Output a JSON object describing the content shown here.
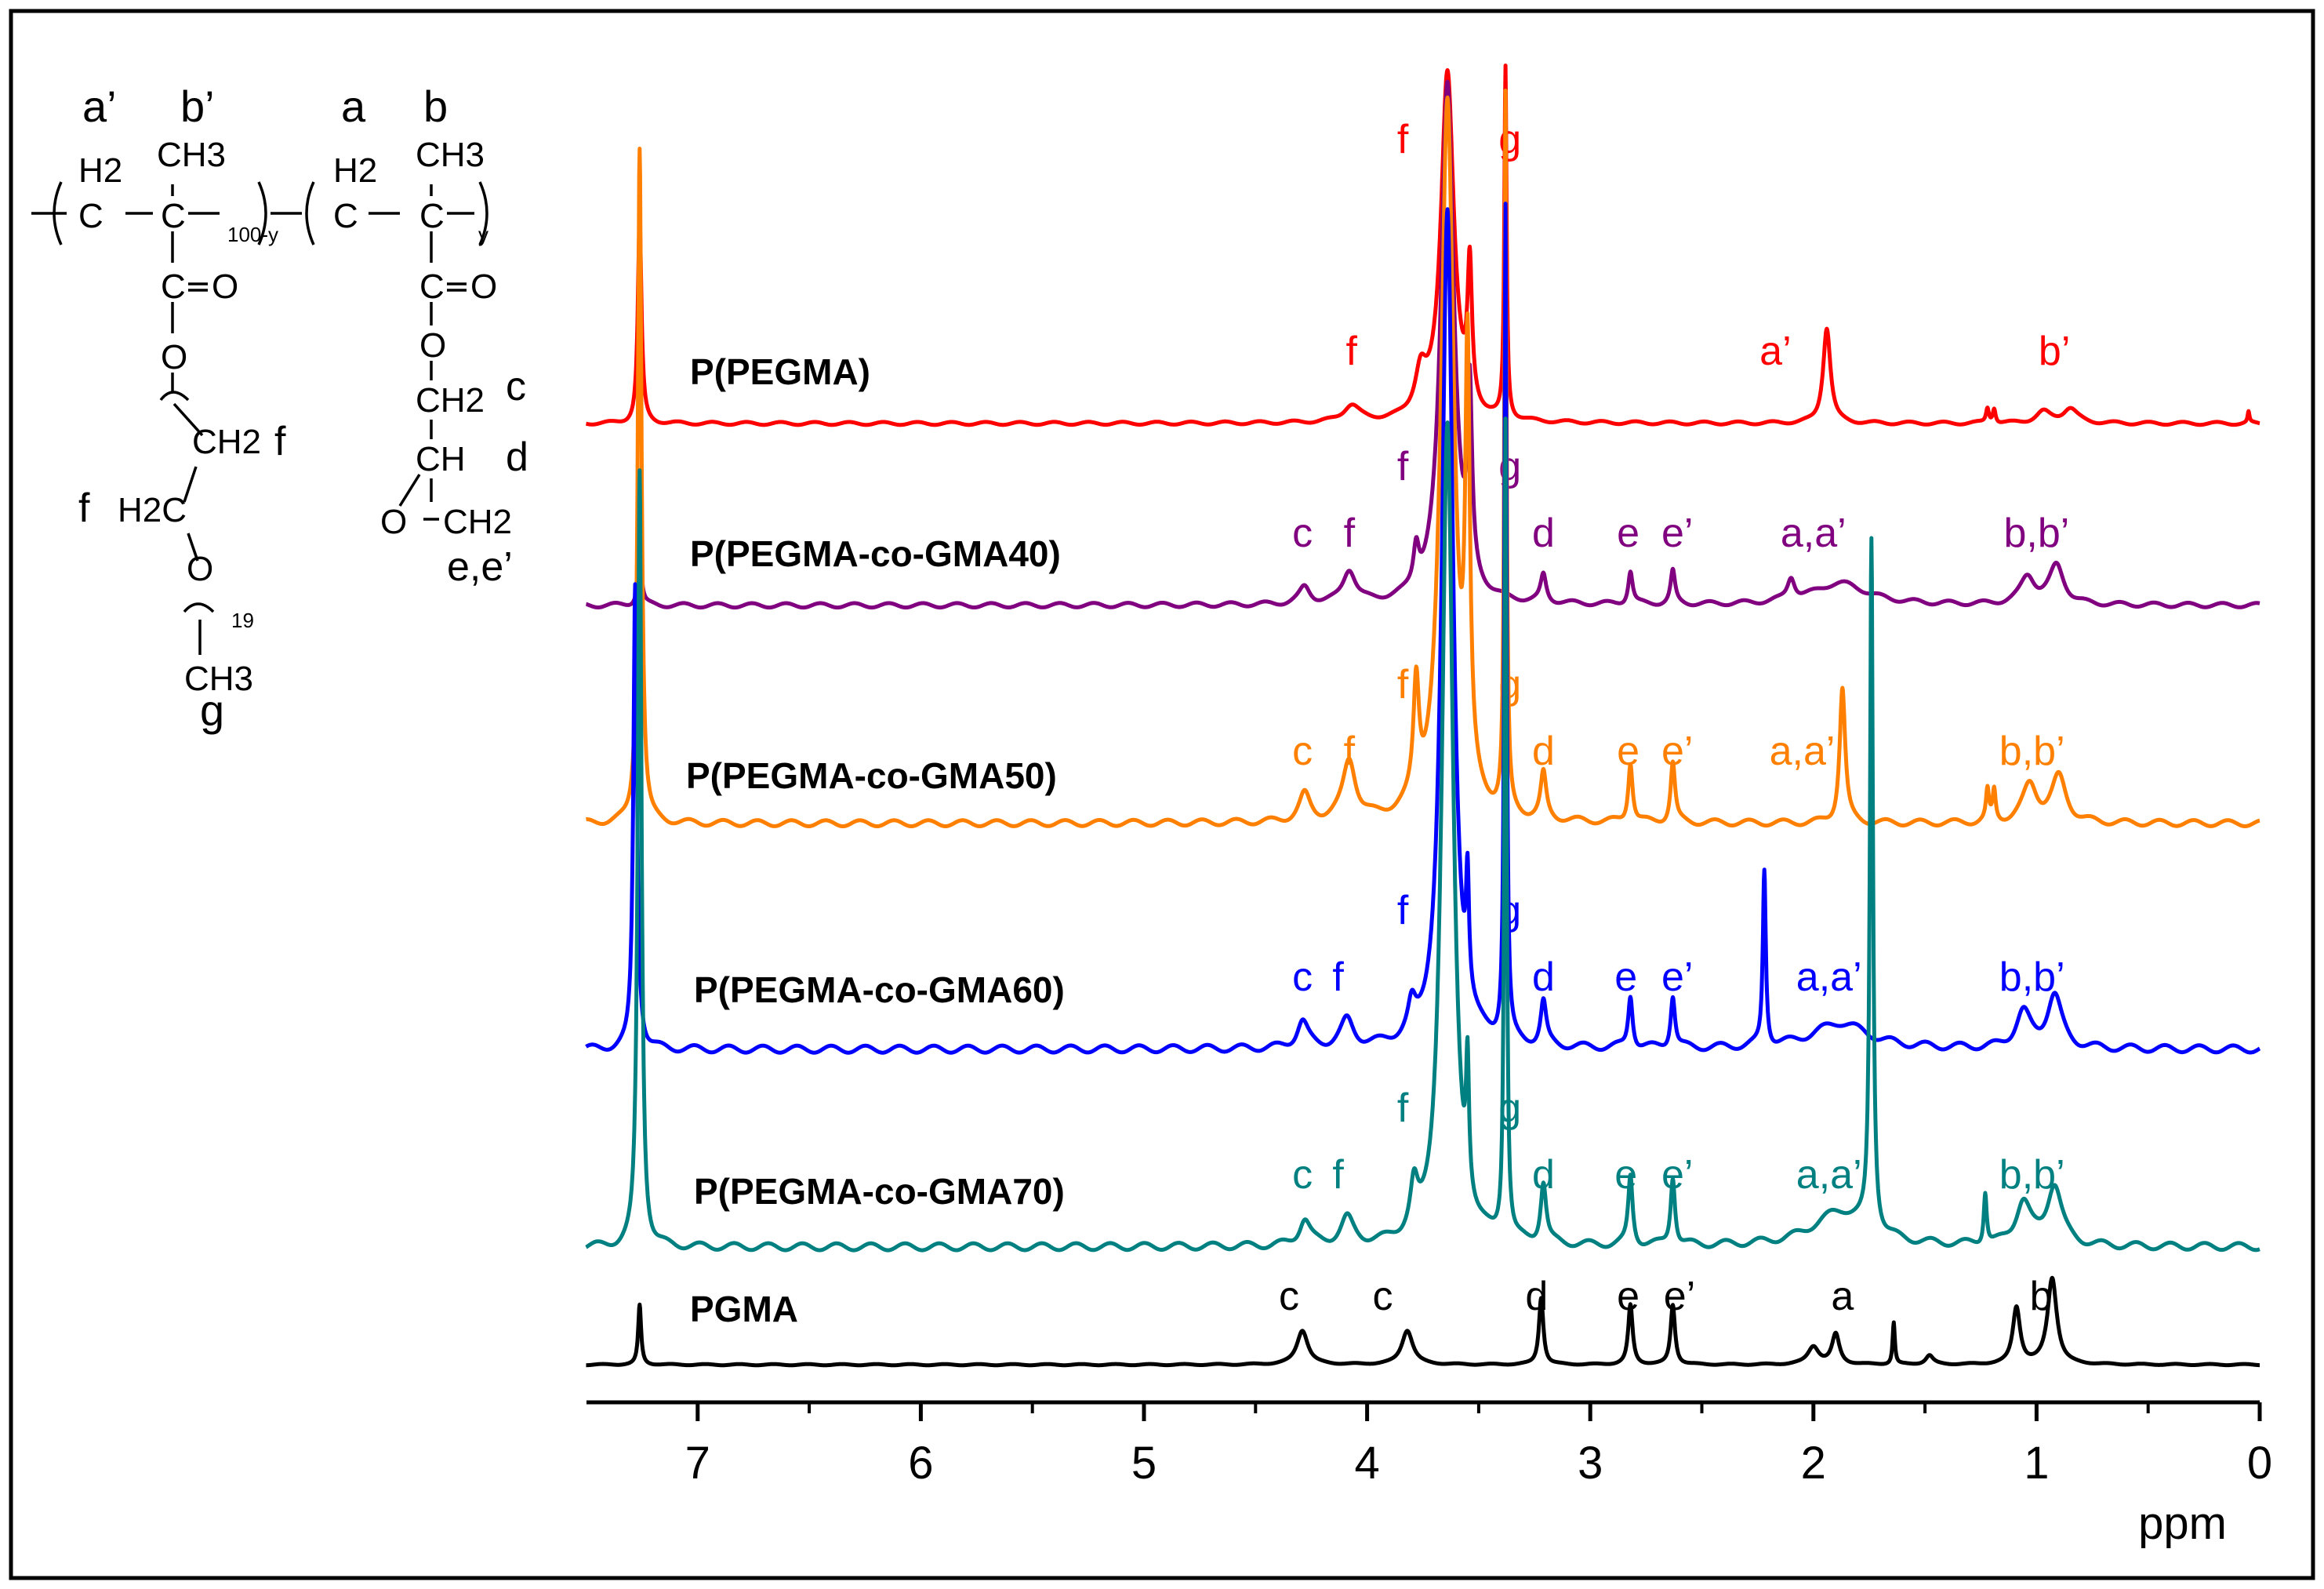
{
  "structure": {
    "top_labels": [
      "a’",
      "b’",
      "a",
      "b"
    ],
    "atoms": {
      "h2_left": "H2",
      "c_left": "C",
      "ch3_left": "CH3",
      "c_left2": "C",
      "sub_100y": "100-y",
      "h2_right": "H2",
      "c_right": "C",
      "ch3_right": "CH3",
      "c_right2": "C",
      "sub_y": "y",
      "co_left": "C",
      "o_left": "O",
      "ester_o_left": "O",
      "ch2_f": "CH2",
      "f_right": "f",
      "f_left": "f",
      "h2c": "H2C",
      "o_ether": "O",
      "sub_19": "19",
      "ch3_bottom": "CH3",
      "g_bottom": "g",
      "co_right": "C",
      "o_right": "O",
      "ester_o_right": "O",
      "ch2_c": "CH2",
      "c_label": "c",
      "ch": "CH",
      "d_label": "d",
      "o_epox": "O",
      "ch2_e": "CH2",
      "e_label": "e,e’"
    }
  },
  "chart_data": {
    "type": "line",
    "title": "",
    "xlabel": "ppm",
    "ylabel": "",
    "xlim": [
      7.5,
      0
    ],
    "x_reversed": true,
    "xticks": [
      7,
      6,
      5,
      4,
      3,
      2,
      1,
      0
    ],
    "grid": false,
    "series": [
      {
        "name": "P(PEGMA)",
        "color": "#ff0000",
        "peaks": [
          [
            7.26,
            0.55,
            0.01
          ],
          [
            4.07,
            0.045,
            0.045
          ],
          [
            3.76,
            0.11,
            0.03
          ],
          [
            3.64,
            0.95,
            0.035
          ],
          [
            3.54,
            0.37,
            0.012
          ],
          [
            3.38,
            0.95,
            0.006
          ],
          [
            1.94,
            0.26,
            0.02
          ],
          [
            1.22,
            0.04,
            0.008
          ],
          [
            1.19,
            0.04,
            0.008
          ],
          [
            0.97,
            0.03,
            0.04
          ],
          [
            0.85,
            0.04,
            0.04
          ],
          [
            0.05,
            0.03,
            0.005
          ]
        ],
        "peak_labels": [
          {
            "ppm": 3.84,
            "text": "f",
            "pos": "high"
          },
          {
            "ppm": 3.36,
            "text": "g",
            "pos": "high"
          },
          {
            "ppm": 4.07,
            "text": "f"
          },
          {
            "ppm": 2.17,
            "text": "a’"
          },
          {
            "ppm": 0.92,
            "text": "b’"
          }
        ]
      },
      {
        "name": "P(PEGMA-co-GMA40)",
        "color": "#800080",
        "peaks": [
          [
            7.26,
            0.1,
            0.01
          ],
          [
            4.28,
            0.03,
            0.03
          ],
          [
            4.08,
            0.06,
            0.035
          ],
          [
            3.78,
            0.07,
            0.015
          ],
          [
            3.64,
            0.95,
            0.035
          ],
          [
            3.54,
            0.33,
            0.012
          ],
          [
            3.21,
            0.05,
            0.015
          ],
          [
            2.82,
            0.06,
            0.012
          ],
          [
            2.63,
            0.06,
            0.012
          ],
          [
            2.1,
            0.04,
            0.02
          ],
          [
            1.88,
            0.04,
            0.15
          ],
          [
            1.04,
            0.05,
            0.04
          ],
          [
            0.91,
            0.07,
            0.04
          ]
        ],
        "peak_labels": [
          {
            "ppm": 3.84,
            "text": "f",
            "pos": "high"
          },
          {
            "ppm": 3.36,
            "text": "g",
            "pos": "high"
          },
          {
            "ppm": 4.29,
            "text": "c"
          },
          {
            "ppm": 4.08,
            "text": "f"
          },
          {
            "ppm": 3.21,
            "text": "d"
          },
          {
            "ppm": 2.83,
            "text": "e"
          },
          {
            "ppm": 2.61,
            "text": "e’"
          },
          {
            "ppm": 2.0,
            "text": "a,a’"
          },
          {
            "ppm": 1.0,
            "text": "b,b’"
          }
        ]
      },
      {
        "name": "P(PEGMA-co-GMA50)",
        "color": "#ff8000",
        "peaks": [
          [
            7.26,
            0.9,
            0.01
          ],
          [
            4.28,
            0.035,
            0.03
          ],
          [
            4.08,
            0.08,
            0.035
          ],
          [
            3.78,
            0.15,
            0.015
          ],
          [
            3.64,
            0.95,
            0.035
          ],
          [
            3.55,
            0.55,
            0.012
          ],
          [
            3.38,
            0.95,
            0.006
          ],
          [
            3.21,
            0.06,
            0.015
          ],
          [
            2.82,
            0.08,
            0.012
          ],
          [
            2.63,
            0.08,
            0.012
          ],
          [
            1.87,
            0.18,
            0.015
          ],
          [
            1.22,
            0.04,
            0.008
          ],
          [
            1.19,
            0.04,
            0.008
          ],
          [
            1.03,
            0.05,
            0.04
          ],
          [
            0.9,
            0.06,
            0.04
          ]
        ],
        "peak_labels": [
          {
            "ppm": 3.84,
            "text": "f",
            "pos": "high"
          },
          {
            "ppm": 3.36,
            "text": "g",
            "pos": "high"
          },
          {
            "ppm": 4.29,
            "text": "c"
          },
          {
            "ppm": 4.08,
            "text": "f"
          },
          {
            "ppm": 3.21,
            "text": "d"
          },
          {
            "ppm": 2.83,
            "text": "e"
          },
          {
            "ppm": 2.61,
            "text": "e’"
          },
          {
            "ppm": 2.05,
            "text": "a,a’"
          },
          {
            "ppm": 1.02,
            "text": "b,b’"
          }
        ]
      },
      {
        "name": "P(PEGMA-co-GMA60)",
        "color": "#0000ff",
        "peaks": [
          [
            7.28,
            0.53,
            0.01
          ],
          [
            4.29,
            0.03,
            0.03
          ],
          [
            4.09,
            0.03,
            0.035
          ],
          [
            3.8,
            0.03,
            0.02
          ],
          [
            3.64,
            0.95,
            0.03
          ],
          [
            3.55,
            0.13,
            0.008
          ],
          [
            3.38,
            0.95,
            0.006
          ],
          [
            3.21,
            0.05,
            0.015
          ],
          [
            2.82,
            0.06,
            0.012
          ],
          [
            2.63,
            0.06,
            0.012
          ],
          [
            2.22,
            0.2,
            0.008
          ],
          [
            1.88,
            0.03,
            0.15
          ],
          [
            1.06,
            0.04,
            0.04
          ],
          [
            0.92,
            0.06,
            0.04
          ]
        ],
        "peak_labels": [
          {
            "ppm": 3.84,
            "text": "f",
            "pos": "high"
          },
          {
            "ppm": 3.36,
            "text": "g",
            "pos": "high"
          },
          {
            "ppm": 4.29,
            "text": "c"
          },
          {
            "ppm": 4.13,
            "text": "f"
          },
          {
            "ppm": 3.21,
            "text": "d"
          },
          {
            "ppm": 2.84,
            "text": "e"
          },
          {
            "ppm": 2.61,
            "text": "e’"
          },
          {
            "ppm": 1.93,
            "text": "a,a’"
          },
          {
            "ppm": 1.02,
            "text": "b,b’"
          }
        ]
      },
      {
        "name": "P(PEGMA-co-GMA70)",
        "color": "#008080",
        "peaks": [
          [
            7.26,
            0.9,
            0.01
          ],
          [
            4.28,
            0.03,
            0.03
          ],
          [
            4.09,
            0.03,
            0.035
          ],
          [
            3.79,
            0.05,
            0.02
          ],
          [
            3.64,
            0.95,
            0.03
          ],
          [
            3.55,
            0.15,
            0.008
          ],
          [
            3.38,
            0.95,
            0.006
          ],
          [
            3.21,
            0.07,
            0.015
          ],
          [
            2.82,
            0.08,
            0.012
          ],
          [
            2.63,
            0.08,
            0.012
          ],
          [
            1.74,
            0.8,
            0.008
          ],
          [
            1.88,
            0.04,
            0.15
          ],
          [
            1.23,
            0.06,
            0.008
          ],
          [
            1.06,
            0.05,
            0.04
          ],
          [
            0.92,
            0.07,
            0.04
          ]
        ],
        "peak_labels": [
          {
            "ppm": 3.84,
            "text": "f",
            "pos": "high"
          },
          {
            "ppm": 3.36,
            "text": "g",
            "pos": "high"
          },
          {
            "ppm": 4.29,
            "text": "c"
          },
          {
            "ppm": 4.13,
            "text": "f"
          },
          {
            "ppm": 3.21,
            "text": "d"
          },
          {
            "ppm": 2.84,
            "text": "e"
          },
          {
            "ppm": 2.61,
            "text": "e’"
          },
          {
            "ppm": 1.93,
            "text": "a,a’"
          },
          {
            "ppm": 1.02,
            "text": "b,b’"
          }
        ]
      },
      {
        "name": "PGMA",
        "color": "#000000",
        "peaks": [
          [
            7.26,
            0.4,
            0.008
          ],
          [
            4.29,
            0.23,
            0.03
          ],
          [
            3.82,
            0.23,
            0.03
          ],
          [
            3.22,
            0.45,
            0.012
          ],
          [
            2.82,
            0.4,
            0.012
          ],
          [
            2.63,
            0.4,
            0.012
          ],
          [
            2.0,
            0.12,
            0.03
          ],
          [
            1.9,
            0.2,
            0.02
          ],
          [
            1.64,
            0.28,
            0.006
          ],
          [
            1.48,
            0.06,
            0.02
          ],
          [
            1.09,
            0.38,
            0.02
          ],
          [
            0.93,
            0.58,
            0.025
          ]
        ],
        "peak_labels": [
          {
            "ppm": 4.35,
            "text": "c"
          },
          {
            "ppm": 3.93,
            "text": "c"
          },
          {
            "ppm": 3.24,
            "text": "d"
          },
          {
            "ppm": 2.83,
            "text": "e"
          },
          {
            "ppm": 2.6,
            "text": "e’"
          },
          {
            "ppm": 1.87,
            "text": "a"
          },
          {
            "ppm": 0.98,
            "text": "b"
          }
        ]
      }
    ]
  }
}
